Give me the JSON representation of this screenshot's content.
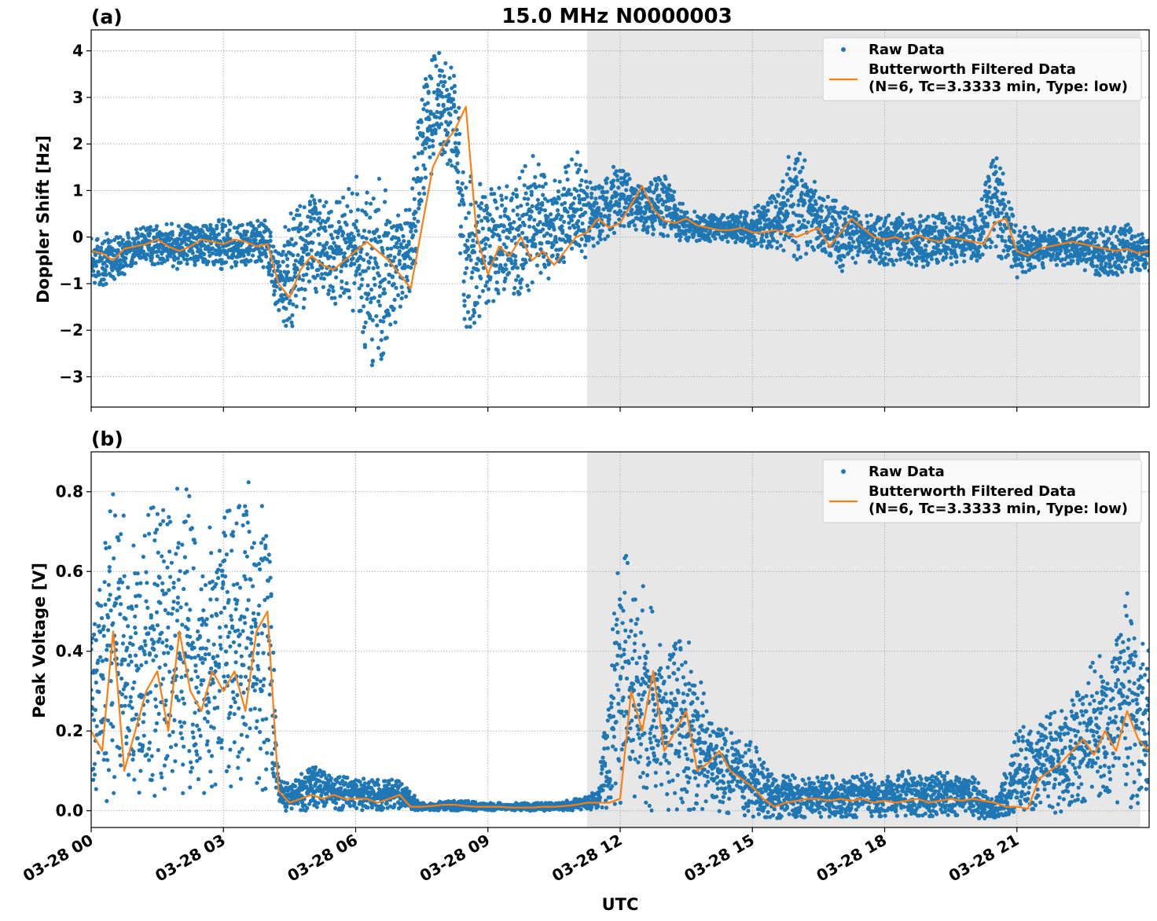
{
  "figure": {
    "title": "15.0 MHz N0000003",
    "x_axis_label": "UTC"
  },
  "colors": {
    "raw": "#1f77b4",
    "filtered": "#ff7f0e",
    "night_shade": "#e7e7e7",
    "grid": "#b0b0b0"
  },
  "chart_data": [
    {
      "type": "scatter",
      "panel_label": "(a)",
      "ylabel": "Doppler Shift [Hz]",
      "xlabel": "",
      "x_unit": "hours UTC on 03-28",
      "xlim": [
        0,
        24
      ],
      "ylim": [
        -3.65,
        4.45
      ],
      "x_ticks": [
        0,
        3,
        6,
        9,
        12,
        15,
        18,
        21
      ],
      "y_ticks": [
        4,
        3,
        2,
        1,
        0,
        -1,
        -2,
        -3
      ],
      "y_tick_labels": [
        "4",
        "3",
        "2",
        "1",
        "0",
        "−1",
        "−2",
        "−3"
      ],
      "x_tick_labels_shown": false,
      "grid": true,
      "shaded_interval": [
        11.25,
        23.8
      ],
      "legend": {
        "placement": "top-right",
        "entries": [
          {
            "kind": "marker",
            "label": "Raw Data"
          },
          {
            "kind": "line",
            "label": "Butterworth Filtered Data",
            "label2": "(N=6, Tc=3.3333 min, Type: low)"
          }
        ]
      },
      "series": [
        {
          "name": "Butterworth Filtered Data",
          "role": "filtered",
          "x": [
            0,
            0.25,
            0.5,
            0.75,
            1,
            1.25,
            1.5,
            1.75,
            2,
            2.25,
            2.5,
            2.75,
            3,
            3.25,
            3.5,
            3.75,
            4,
            4.25,
            4.5,
            4.75,
            5,
            5.25,
            5.5,
            5.75,
            6,
            6.25,
            6.5,
            6.75,
            7,
            7.25,
            7.5,
            7.75,
            8,
            8.25,
            8.5,
            8.75,
            9,
            9.25,
            9.5,
            9.75,
            10,
            10.25,
            10.5,
            10.75,
            11,
            11.25,
            11.5,
            11.75,
            12,
            12.25,
            12.5,
            12.75,
            13,
            13.25,
            13.5,
            13.75,
            14,
            14.25,
            14.5,
            14.75,
            15,
            15.25,
            15.5,
            15.75,
            16,
            16.25,
            16.5,
            16.75,
            17,
            17.25,
            17.5,
            17.75,
            18,
            18.25,
            18.5,
            18.75,
            19,
            19.25,
            19.5,
            19.75,
            20,
            20.25,
            20.5,
            20.75,
            21,
            21.25,
            21.5,
            21.75,
            22,
            22.25,
            22.5,
            22.75,
            23,
            23.25,
            23.5,
            23.75,
            24
          ],
          "y": [
            -0.3,
            -0.35,
            -0.5,
            -0.25,
            -0.2,
            -0.15,
            -0.05,
            -0.2,
            -0.3,
            -0.2,
            -0.05,
            -0.1,
            -0.15,
            -0.05,
            -0.1,
            -0.2,
            -0.15,
            -1.0,
            -1.3,
            -0.7,
            -0.4,
            -0.6,
            -0.7,
            -0.5,
            -0.3,
            -0.1,
            -0.3,
            -0.5,
            -0.8,
            -1.1,
            0.2,
            1.5,
            2.0,
            2.3,
            2.8,
            0.0,
            -0.8,
            -0.2,
            -0.4,
            0.0,
            -0.5,
            -0.3,
            -0.6,
            -0.3,
            0.0,
            0.1,
            0.4,
            0.2,
            0.3,
            0.7,
            1.1,
            0.6,
            0.35,
            0.3,
            0.4,
            0.25,
            0.2,
            0.15,
            0.15,
            0.2,
            0.1,
            0.1,
            0.15,
            0.1,
            0.0,
            0.1,
            0.2,
            -0.2,
            0.1,
            0.4,
            0.2,
            0.0,
            -0.05,
            0.0,
            -0.1,
            0.05,
            -0.05,
            -0.1,
            0.0,
            -0.05,
            -0.1,
            -0.15,
            0.3,
            0.4,
            -0.3,
            -0.4,
            -0.25,
            -0.2,
            -0.15,
            -0.1,
            -0.15,
            -0.2,
            -0.25,
            -0.3,
            -0.25,
            -0.35,
            -0.3
          ]
        },
        {
          "name": "Raw Data",
          "role": "raw",
          "x": [
            0,
            0.5,
            1,
            1.5,
            2,
            2.5,
            3,
            3.5,
            4,
            4.25,
            4.5,
            5,
            5.5,
            6,
            6.5,
            7,
            7.25,
            7.5,
            7.75,
            8,
            8.25,
            8.5,
            8.75,
            9,
            9.5,
            10,
            10.5,
            11,
            11.5,
            12,
            12.5,
            13,
            13.5,
            14,
            14.5,
            15,
            15.5,
            16,
            16.5,
            17,
            17.5,
            18,
            18.5,
            19,
            19.5,
            20,
            20.5,
            21,
            21.5,
            22,
            22.5,
            23,
            23.5,
            24
          ],
          "y_min": [
            -1.1,
            -1.0,
            -0.6,
            -0.6,
            -0.7,
            -0.6,
            -0.7,
            -0.6,
            -0.7,
            -1.8,
            -2.0,
            -1.3,
            -1.5,
            -1.8,
            -3.2,
            -1.6,
            -1.3,
            0.5,
            1.2,
            1.6,
            1.4,
            -2.6,
            -1.9,
            -1.5,
            -1.3,
            -1.2,
            -0.8,
            -0.7,
            -0.2,
            0.1,
            0.1,
            0.0,
            -0.1,
            -0.1,
            -0.1,
            -0.2,
            -0.3,
            -0.5,
            -0.4,
            -0.8,
            -0.5,
            -0.6,
            -0.6,
            -0.7,
            -0.6,
            -0.6,
            -0.4,
            -0.9,
            -0.7,
            -0.6,
            -0.7,
            -0.9,
            -0.8,
            -0.8
          ],
          "y_max": [
            0.1,
            0.1,
            0.2,
            0.3,
            0.3,
            0.3,
            0.4,
            0.3,
            0.4,
            -0.2,
            0.6,
            0.9,
            0.9,
            1.4,
            1.3,
            0.6,
            1.0,
            3.2,
            3.9,
            4.1,
            3.6,
            1.4,
            1.2,
            1.2,
            1.2,
            1.8,
            1.2,
            1.9,
            1.2,
            1.7,
            1.1,
            1.4,
            0.6,
            0.5,
            0.5,
            0.7,
            0.9,
            2.3,
            1.0,
            0.8,
            0.5,
            0.5,
            0.5,
            0.5,
            0.5,
            0.4,
            2.0,
            0.3,
            0.2,
            0.2,
            0.2,
            0.2,
            0.3,
            0.1
          ]
        }
      ]
    },
    {
      "type": "scatter",
      "panel_label": "(b)",
      "ylabel": "Peak Voltage [V]",
      "xlabel": "UTC",
      "x_unit": "hours UTC on 03-28",
      "xlim": [
        0,
        24
      ],
      "ylim": [
        -0.042,
        0.9
      ],
      "x_ticks": [
        0,
        3,
        6,
        9,
        12,
        15,
        18,
        21
      ],
      "x_tick_labels": [
        "03-28 00",
        "03-28 03",
        "03-28 06",
        "03-28 09",
        "03-28 12",
        "03-28 15",
        "03-28 18",
        "03-28 21"
      ],
      "y_ticks": [
        0.8,
        0.6,
        0.4,
        0.2,
        0.0
      ],
      "y_tick_labels": [
        "0.8",
        "0.6",
        "0.4",
        "0.2",
        "0.0"
      ],
      "grid": true,
      "shaded_interval": [
        11.25,
        23.8
      ],
      "legend": {
        "placement": "top-right",
        "entries": [
          {
            "kind": "marker",
            "label": "Raw Data"
          },
          {
            "kind": "line",
            "label": "Butterworth Filtered Data",
            "label2": "(N=6, Tc=3.3333 min, Type: low)"
          }
        ]
      },
      "series": [
        {
          "name": "Butterworth Filtered Data",
          "role": "filtered",
          "x": [
            0,
            0.25,
            0.5,
            0.75,
            1,
            1.25,
            1.5,
            1.75,
            2,
            2.25,
            2.5,
            2.75,
            3,
            3.25,
            3.5,
            3.75,
            4,
            4.25,
            4.5,
            4.75,
            5,
            5.25,
            5.5,
            5.75,
            6,
            6.25,
            6.5,
            6.75,
            7,
            7.25,
            7.5,
            7.75,
            8,
            8.25,
            8.5,
            8.75,
            9,
            9.25,
            9.5,
            9.75,
            10,
            10.25,
            10.5,
            10.75,
            11,
            11.25,
            11.5,
            11.75,
            12,
            12.25,
            12.5,
            12.75,
            13,
            13.25,
            13.5,
            13.75,
            14,
            14.25,
            14.5,
            14.75,
            15,
            15.25,
            15.5,
            15.75,
            16,
            16.25,
            16.5,
            16.75,
            17,
            17.25,
            17.5,
            17.75,
            18,
            18.25,
            18.5,
            18.75,
            19,
            19.25,
            19.5,
            19.75,
            20,
            20.25,
            20.5,
            20.75,
            21,
            21.25,
            21.5,
            21.75,
            22,
            22.25,
            22.5,
            22.75,
            23,
            23.25,
            23.5,
            23.75,
            24
          ],
          "y": [
            0.2,
            0.15,
            0.45,
            0.1,
            0.2,
            0.3,
            0.35,
            0.2,
            0.45,
            0.3,
            0.25,
            0.35,
            0.3,
            0.35,
            0.25,
            0.45,
            0.5,
            0.05,
            0.02,
            0.03,
            0.04,
            0.03,
            0.04,
            0.03,
            0.03,
            0.03,
            0.02,
            0.03,
            0.04,
            0.01,
            0.01,
            0.012,
            0.015,
            0.015,
            0.012,
            0.01,
            0.01,
            0.01,
            0.008,
            0.008,
            0.008,
            0.01,
            0.01,
            0.012,
            0.015,
            0.02,
            0.02,
            0.02,
            0.03,
            0.3,
            0.2,
            0.35,
            0.15,
            0.2,
            0.25,
            0.1,
            0.12,
            0.15,
            0.1,
            0.08,
            0.06,
            0.03,
            0.01,
            0.02,
            0.025,
            0.03,
            0.03,
            0.025,
            0.03,
            0.025,
            0.03,
            0.02,
            0.025,
            0.02,
            0.025,
            0.03,
            0.02,
            0.025,
            0.03,
            0.025,
            0.03,
            0.025,
            0.02,
            0.01,
            0.01,
            0.005,
            0.08,
            0.1,
            0.12,
            0.15,
            0.18,
            0.14,
            0.2,
            0.15,
            0.25,
            0.18,
            0.15
          ]
        },
        {
          "name": "Raw Data",
          "role": "raw",
          "x": [
            0,
            0.5,
            1,
            1.5,
            2,
            2.5,
            3,
            3.5,
            4,
            4.25,
            4.5,
            5,
            5.5,
            6,
            6.5,
            7,
            7.5,
            8,
            8.5,
            9,
            9.5,
            10,
            10.5,
            11,
            11.5,
            12,
            12.5,
            13,
            13.5,
            14,
            14.5,
            15,
            15.5,
            16,
            16.5,
            17,
            17.5,
            18,
            18.5,
            19,
            19.5,
            20,
            20.5,
            21,
            21.5,
            22,
            22.5,
            23,
            23.5,
            24
          ],
          "y_min": [
            0.01,
            0.02,
            0.02,
            0.02,
            0.02,
            0.02,
            0.03,
            0.03,
            0.05,
            0.0,
            0.0,
            0.0,
            0.0,
            0.0,
            0.0,
            0.0,
            0.0,
            0.0,
            0.0,
            0.0,
            0.0,
            0.0,
            0.0,
            0.0,
            0.0,
            0.0,
            0.0,
            0.0,
            0.0,
            0.0,
            -0.01,
            -0.02,
            -0.02,
            -0.02,
            -0.02,
            -0.02,
            -0.02,
            -0.02,
            -0.02,
            -0.02,
            -0.02,
            -0.02,
            -0.02,
            -0.02,
            -0.02,
            -0.01,
            -0.01,
            0.0,
            0.0,
            0.03
          ],
          "y_max": [
            0.48,
            0.82,
            0.68,
            0.81,
            0.86,
            0.72,
            0.73,
            0.85,
            0.84,
            0.1,
            0.07,
            0.12,
            0.09,
            0.09,
            0.08,
            0.08,
            0.02,
            0.025,
            0.025,
            0.02,
            0.02,
            0.02,
            0.02,
            0.03,
            0.05,
            0.67,
            0.57,
            0.42,
            0.47,
            0.25,
            0.2,
            0.18,
            0.1,
            0.09,
            0.09,
            0.09,
            0.1,
            0.09,
            0.1,
            0.1,
            0.1,
            0.09,
            0.02,
            0.2,
            0.25,
            0.25,
            0.35,
            0.4,
            0.55,
            0.42
          ]
        }
      ]
    }
  ]
}
